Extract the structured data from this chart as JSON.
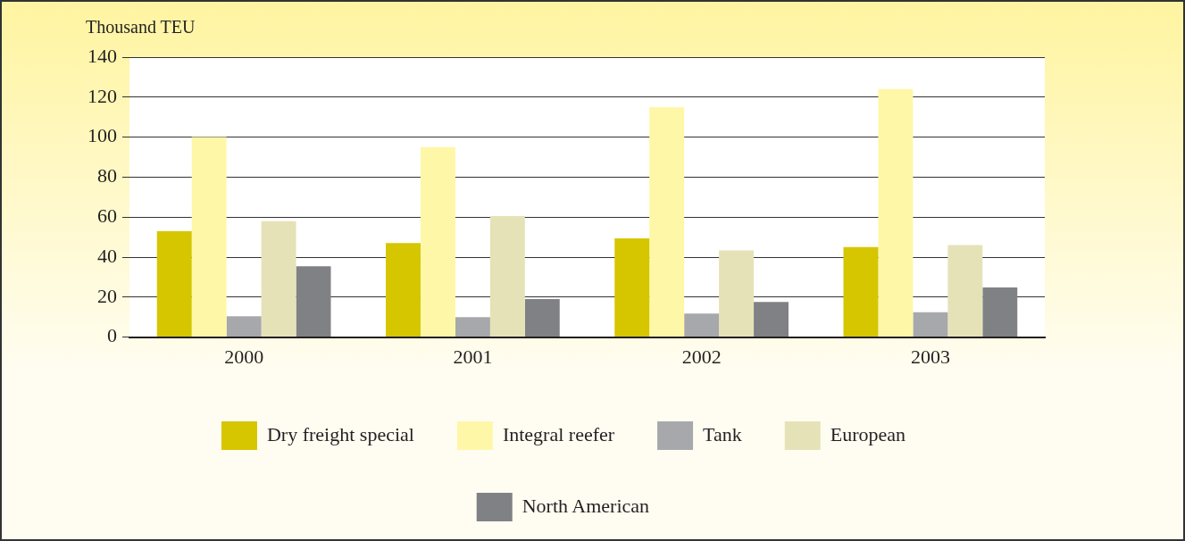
{
  "chart_data": {
    "type": "bar",
    "ylabel": "Thousand TEU",
    "categories": [
      "2000",
      "2001",
      "2002",
      "2003"
    ],
    "series": [
      {
        "name": "Dry freight special",
        "color": "#d6c600",
        "values": [
          53,
          47,
          49.4,
          45
        ]
      },
      {
        "name": "Integral reefer",
        "color": "#fff7a8",
        "values": [
          100,
          95,
          115,
          124
        ]
      },
      {
        "name": "Tank",
        "color": "#a7a8ab",
        "values": [
          10.4,
          10,
          11.8,
          12.4
        ]
      },
      {
        "name": "European",
        "color": "#e6e2b8",
        "values": [
          58,
          60.5,
          43.4,
          46
        ]
      },
      {
        "name": "North American",
        "color": "#808184",
        "values": [
          35.4,
          19,
          17.6,
          24.8
        ]
      }
    ],
    "ylim": [
      0,
      140
    ],
    "yticks": [
      0,
      20,
      40,
      60,
      80,
      100,
      120,
      140
    ],
    "grid": "y",
    "legend": "bottom"
  }
}
